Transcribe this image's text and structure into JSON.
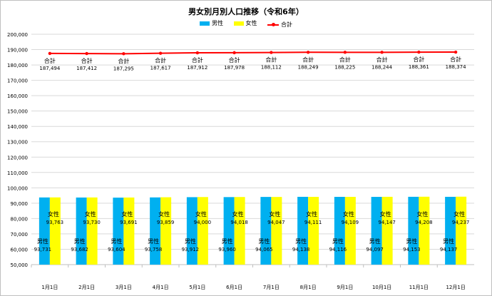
{
  "chart_data": {
    "type": "bar",
    "title": "男女別月別人口推移（令和6年）",
    "categories": [
      "1月1日",
      "2月1日",
      "3月1日",
      "4月1日",
      "5月1日",
      "6月1日",
      "7月1日",
      "8月1日",
      "9月1日",
      "10月1日",
      "11月1日",
      "12月1日"
    ],
    "series": [
      {
        "name": "男性",
        "type": "bar",
        "color": "#00b0f0",
        "values": [
          93731,
          93682,
          93604,
          93758,
          93912,
          93960,
          94065,
          94138,
          94116,
          94097,
          94153,
          94137
        ]
      },
      {
        "name": "女性",
        "type": "bar",
        "color": "#ffff00",
        "values": [
          93763,
          93730,
          93691,
          93859,
          94000,
          94018,
          94047,
          94111,
          94109,
          94147,
          94208,
          94237
        ]
      },
      {
        "name": "合計",
        "type": "line",
        "color": "#ff0000",
        "values": [
          187494,
          187412,
          187295,
          187617,
          187912,
          187978,
          188112,
          188249,
          188225,
          188244,
          188361,
          188374
        ]
      }
    ],
    "ylim": [
      50000,
      200000
    ],
    "yticks": [
      "50,000",
      "60,000",
      "70,000",
      "80,000",
      "90,000",
      "100,000",
      "110,000",
      "120,000",
      "130,000",
      "140,000",
      "150,000",
      "160,000",
      "170,000",
      "180,000",
      "190,000",
      "200,000"
    ],
    "grid": true,
    "legend_position": "top",
    "data_labels": true
  }
}
